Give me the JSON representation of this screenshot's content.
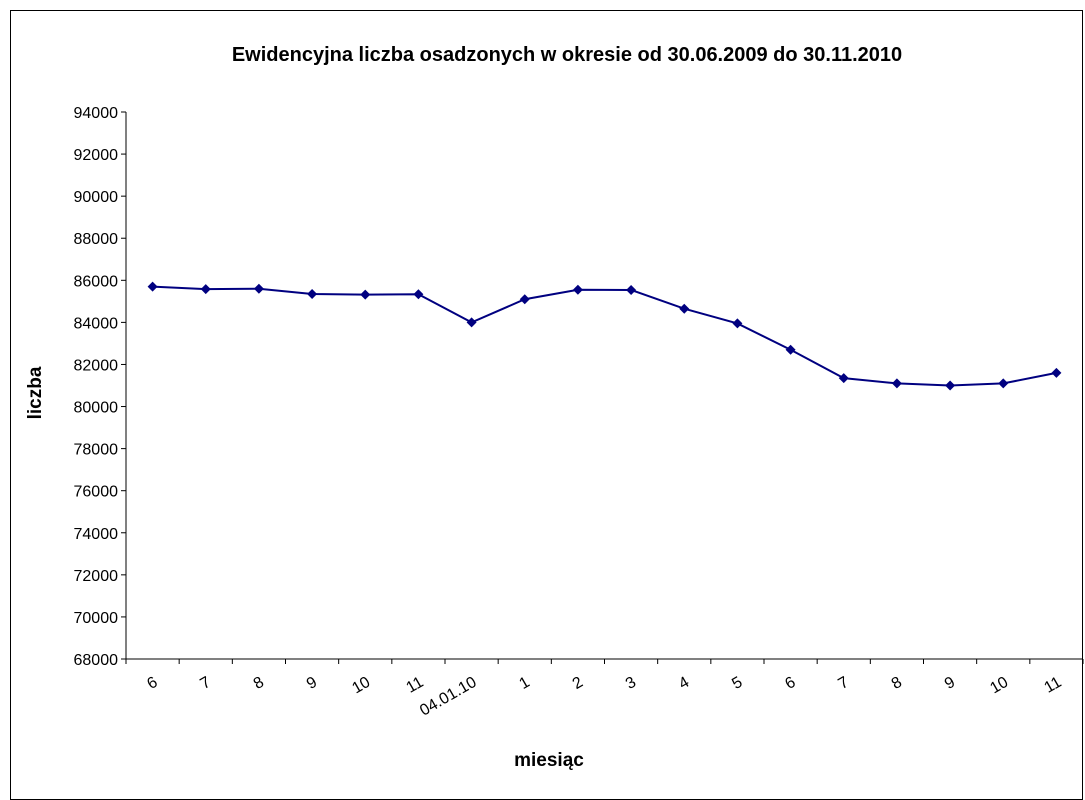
{
  "chart_data": {
    "type": "line",
    "title": "Ewidencyjna liczba osadzonych w okresie od 30.06.2009 do 30.11.2010",
    "xlabel": "miesiąc",
    "ylabel": "liczba",
    "categories": [
      "6",
      "7",
      "8",
      "9",
      "10",
      "11",
      "04.01.10",
      "1",
      "2",
      "3",
      "4",
      "5",
      "6",
      "7",
      "8",
      "9",
      "10",
      "11"
    ],
    "series": [
      {
        "values": [
          85700,
          85580,
          85600,
          85350,
          85320,
          85340,
          84000,
          85100,
          85550,
          85540,
          84650,
          83950,
          82700,
          81350,
          81100,
          81000,
          81100,
          81600
        ]
      }
    ],
    "ylim": [
      68000,
      94000
    ],
    "ytick_step": 2000,
    "yticks": [
      "68000",
      "70000",
      "72000",
      "74000",
      "76000",
      "78000",
      "80000",
      "82000",
      "84000",
      "86000",
      "88000",
      "90000",
      "92000",
      "94000"
    ],
    "grid": false,
    "legend": "none",
    "line_color": "#000080",
    "marker_color": "#000080",
    "marker": "diamond"
  }
}
